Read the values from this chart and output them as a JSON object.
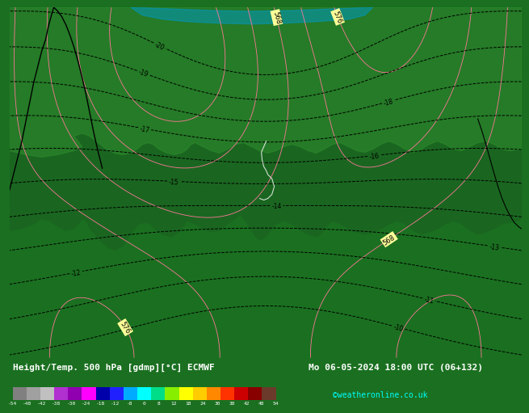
{
  "title": "Height/Temp. 500 hPa [gdmp][°C] ECMWF",
  "date_str": "Mo 06-05-2024 18:00 UTC (06+132)",
  "credit": "©weatheronline.co.uk",
  "colorbar_labels": [
    "-54",
    "-48",
    "-42",
    "-38",
    "-30",
    "-24",
    "-18",
    "-12",
    "-8",
    "0",
    "8",
    "12",
    "18",
    "24",
    "30",
    "38",
    "42",
    "48",
    "54"
  ],
  "sky_color": "#00d8ff",
  "sky_color_light": "#80ecff",
  "sky_color_dark": "#0099cc",
  "land_color_dark": "#1a6620",
  "land_color_mid": "#2d8a2d",
  "land_color_light": "#3aaa3a",
  "bottom_bar_color": "#1a7020",
  "colorbar_colors": [
    "#808080",
    "#a0a0a0",
    "#c0c0c0",
    "#b030d0",
    "#9000b0",
    "#ff00ff",
    "#0000aa",
    "#2020ff",
    "#00aaff",
    "#00ffff",
    "#00dd88",
    "#88ee00",
    "#ffff00",
    "#ffcc00",
    "#ff8800",
    "#ff3300",
    "#cc0000",
    "#880000",
    "#6b3a2a"
  ]
}
